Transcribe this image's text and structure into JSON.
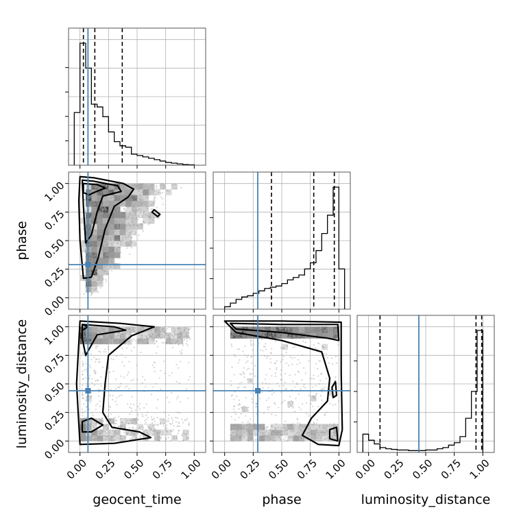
{
  "chart_data": {
    "type": "corner",
    "parameters": [
      "geocent_time",
      "phase",
      "luminosity_distance"
    ],
    "axis_labels": {
      "x": [
        "geocent_time",
        "phase",
        "luminosity_distance"
      ],
      "y": [
        "phase",
        "luminosity_distance"
      ]
    },
    "range": [
      -0.1,
      1.1
    ],
    "ticks": [
      0.0,
      0.25,
      0.5,
      0.75,
      1.0
    ],
    "tick_labels": [
      "0.00",
      "0.25",
      "0.50",
      "0.75",
      "1.00"
    ],
    "grid": true,
    "colors": {
      "hist": "#000000",
      "truth": "#4682b4",
      "points": "#9e9e9e",
      "contour": "#000000"
    },
    "truths": {
      "geocent_time": 0.07,
      "phase": 0.29,
      "luminosity_distance": 0.44
    },
    "histograms": {
      "geocent_time": {
        "bin_edges": [
          -0.05,
          0.0,
          0.05,
          0.1,
          0.15,
          0.2,
          0.25,
          0.3,
          0.35,
          0.4,
          0.45,
          0.5,
          0.55,
          0.6,
          0.65,
          0.7,
          0.75,
          0.8,
          0.85,
          0.9,
          0.95,
          1.0
        ],
        "counts": [
          0.38,
          0.88,
          0.7,
          0.44,
          0.42,
          0.35,
          0.24,
          0.17,
          0.14,
          0.13,
          0.08,
          0.07,
          0.06,
          0.05,
          0.04,
          0.03,
          0.02,
          0.015,
          0.01,
          0.005,
          0.003
        ],
        "quantiles": [
          0.03,
          0.13,
          0.37
        ]
      },
      "phase": {
        "bin_edges": [
          0.0,
          0.05,
          0.1,
          0.15,
          0.2,
          0.25,
          0.3,
          0.35,
          0.4,
          0.45,
          0.5,
          0.55,
          0.6,
          0.65,
          0.7,
          0.75,
          0.8,
          0.85,
          0.9,
          0.95,
          1.0,
          1.05
        ],
        "counts": [
          0.02,
          0.05,
          0.08,
          0.1,
          0.11,
          0.13,
          0.15,
          0.17,
          0.18,
          0.19,
          0.21,
          0.24,
          0.26,
          0.28,
          0.33,
          0.38,
          0.48,
          0.62,
          0.77,
          1.0,
          0.33
        ],
        "quantiles": [
          0.41,
          0.78,
          0.96
        ]
      },
      "luminosity_distance": {
        "bin_edges": [
          -0.05,
          0.0,
          0.05,
          0.1,
          0.15,
          0.2,
          0.25,
          0.3,
          0.35,
          0.4,
          0.45,
          0.5,
          0.55,
          0.6,
          0.65,
          0.7,
          0.75,
          0.8,
          0.85,
          0.9,
          0.95,
          1.0
        ],
        "counts": [
          0.15,
          0.1,
          0.07,
          0.04,
          0.03,
          0.025,
          0.02,
          0.02,
          0.015,
          0.015,
          0.015,
          0.02,
          0.02,
          0.03,
          0.04,
          0.06,
          0.08,
          0.13,
          0.28,
          0.5,
          1.0
        ],
        "quantiles": [
          0.1,
          0.94,
          0.99
        ]
      }
    }
  }
}
